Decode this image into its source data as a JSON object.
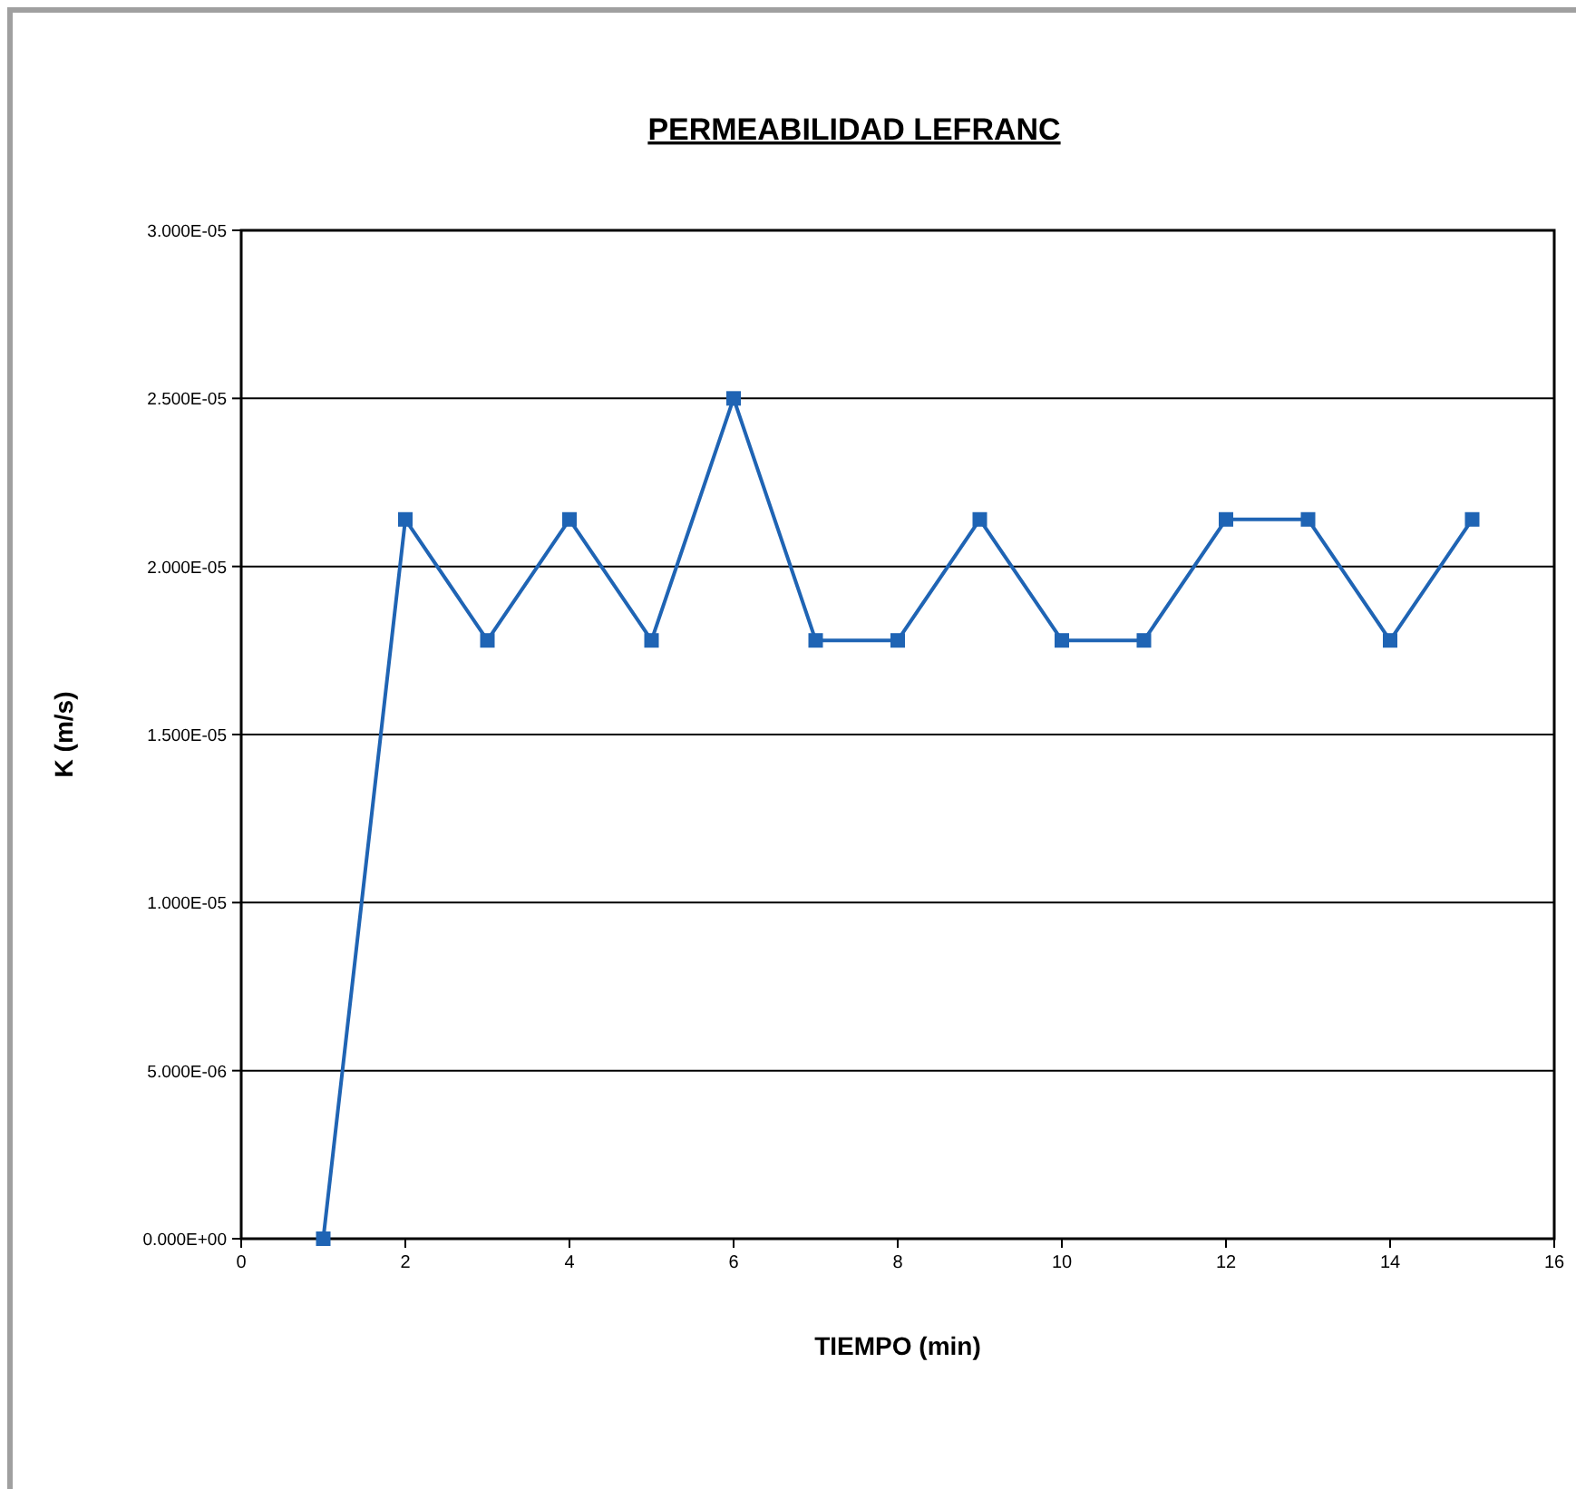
{
  "chart_data": {
    "type": "line",
    "title": "PERMEABILIDAD LEFRANC",
    "xlabel": "TIEMPO (min)",
    "ylabel": "K (m/s)",
    "x": [
      1,
      2,
      3,
      4,
      5,
      6,
      7,
      8,
      9,
      10,
      11,
      12,
      13,
      14,
      15
    ],
    "series": [
      {
        "color": "#1f64b4",
        "values": [
          0,
          2.14e-05,
          1.78e-05,
          2.14e-05,
          1.78e-05,
          2.5e-05,
          1.78e-05,
          1.78e-05,
          2.14e-05,
          1.78e-05,
          1.78e-05,
          2.14e-05,
          2.14e-05,
          1.78e-05,
          2.14e-05
        ]
      }
    ],
    "xlim": [
      0,
      16
    ],
    "xticks": [
      0,
      2,
      4,
      6,
      8,
      10,
      12,
      14,
      16
    ],
    "ylim": [
      0,
      3e-05
    ],
    "yticks": [
      {
        "value": 0,
        "label": "0.000E+00"
      },
      {
        "value": 5e-06,
        "label": "5.000E-06"
      },
      {
        "value": 1e-05,
        "label": "1.000E-05"
      },
      {
        "value": 1.5e-05,
        "label": "1.500E-05"
      },
      {
        "value": 2e-05,
        "label": "2.000E-05"
      },
      {
        "value": 2.5e-05,
        "label": "2.500E-05"
      },
      {
        "value": 3e-05,
        "label": "3.000E-05"
      }
    ],
    "grid": "y",
    "marker": "square",
    "line_style": "solid"
  }
}
